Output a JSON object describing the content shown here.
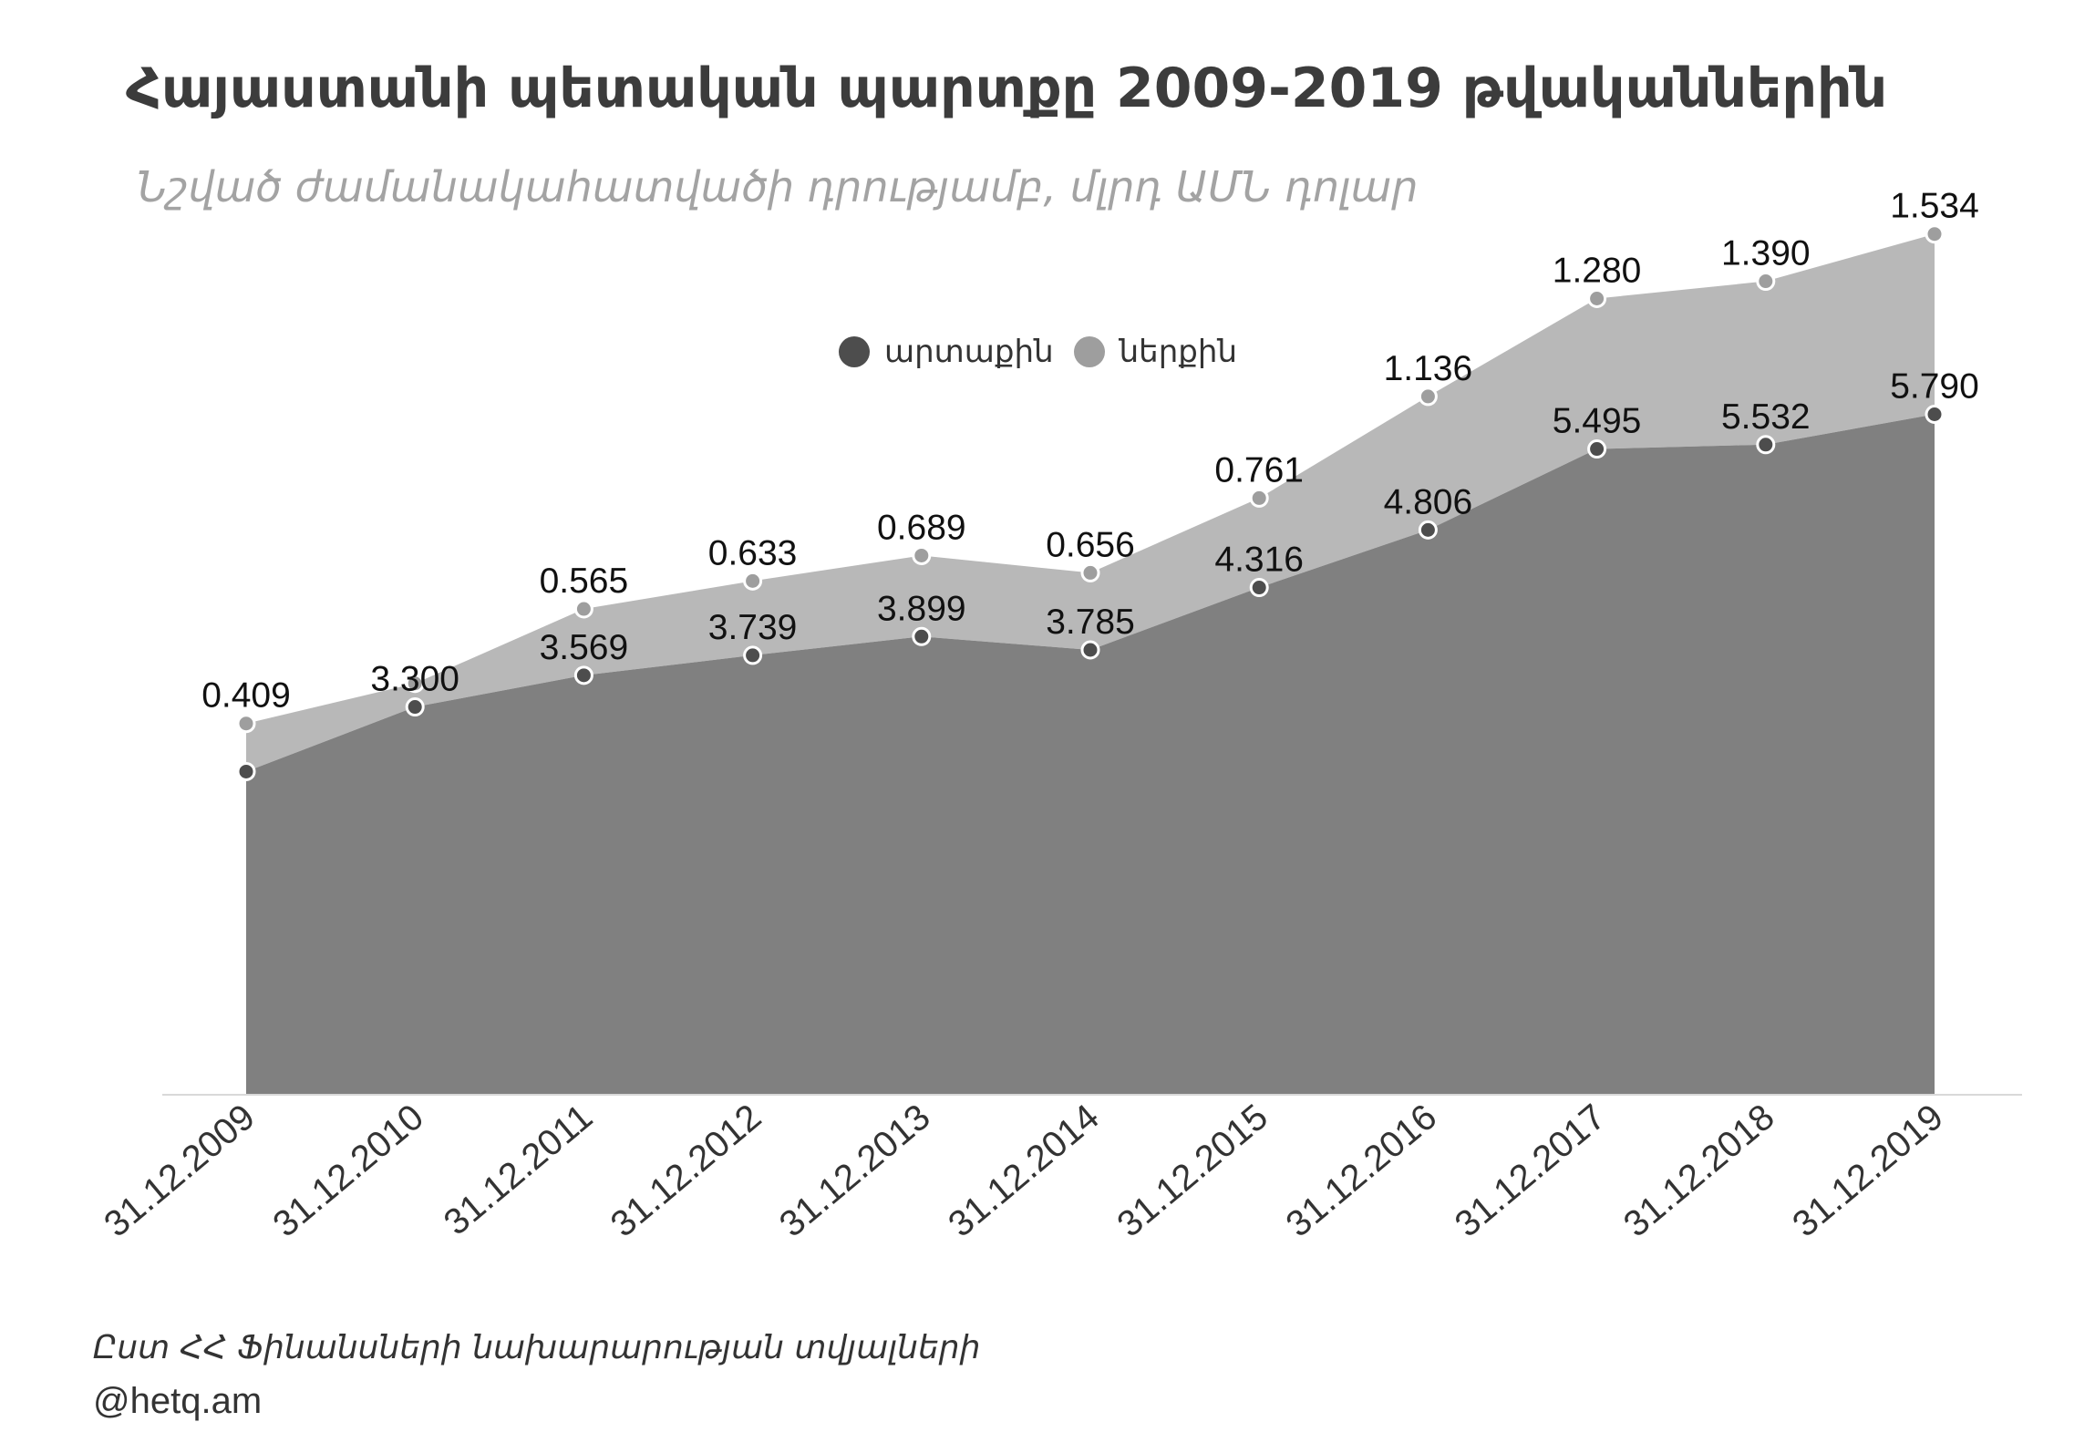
{
  "chart_data": {
    "type": "area",
    "title": "Հայաստանի պետական պարտքը  2009-2019 թվականներին",
    "subtitle": "Նշված ժամանակահատվածի դրությամբ, մլրդ ԱՄՆ դոլար",
    "categories": [
      "31.12.2009",
      "31.12.2010",
      "31.12.2011",
      "31.12.2012",
      "31.12.2013",
      "31.12.2014",
      "31.12.2015",
      "31.12.2016",
      "31.12.2017",
      "31.12.2018",
      "31.12.2019"
    ],
    "stacked": true,
    "series": [
      {
        "name": "արտաքին",
        "values": [
          2.75,
          3.3,
          3.569,
          3.739,
          3.899,
          3.785,
          4.316,
          4.806,
          5.495,
          5.532,
          5.79
        ],
        "labels": [
          "",
          "3.300",
          "3.569",
          "3.739",
          "3.899",
          "3.785",
          "4.316",
          "4.806",
          "5.495",
          "5.532",
          "5.790"
        ],
        "color": "#808080",
        "marker_color": "#4d4d4d"
      },
      {
        "name": "ներքին",
        "values": [
          0.409,
          0.2,
          0.565,
          0.633,
          0.689,
          0.656,
          0.761,
          1.136,
          1.28,
          1.39,
          1.534
        ],
        "labels": [
          "0.409",
          "",
          "0.565",
          "0.633",
          "0.689",
          "0.656",
          "0.761",
          "1.136",
          "1.280",
          "1.390",
          "1.534"
        ],
        "color": "#b8b8b8",
        "marker_color": "#9e9e9e"
      }
    ],
    "ylim": [
      0,
      8.4
    ],
    "legend_position": "top-center",
    "grid": false
  },
  "footer": {
    "source": "Ըստ ՀՀ  Ֆինանսների նախարարության տվյալների",
    "handle": "@hetq.am"
  }
}
